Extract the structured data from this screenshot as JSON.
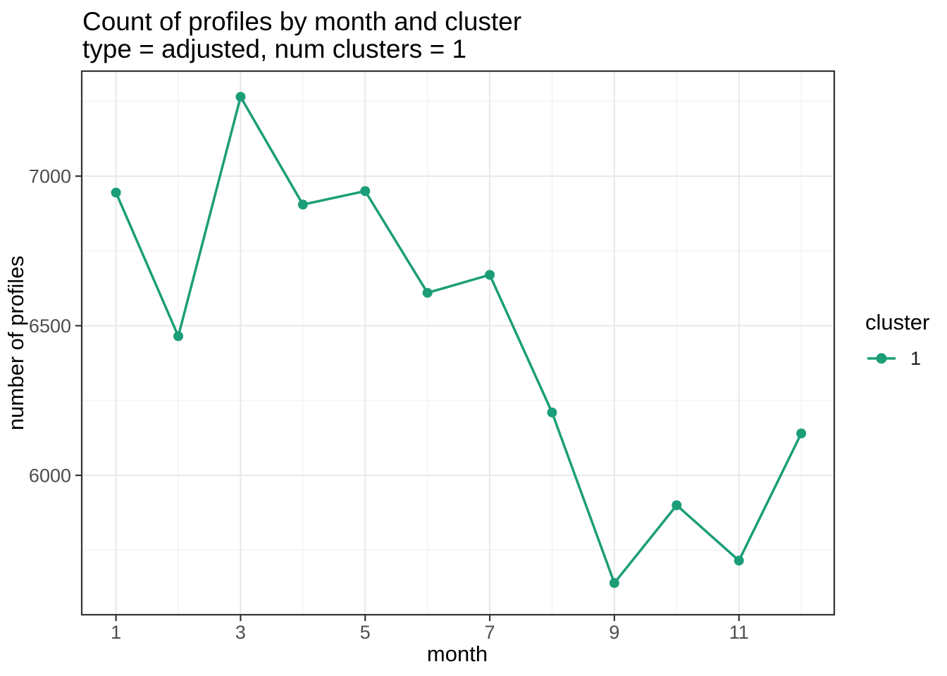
{
  "chart_data": {
    "type": "line",
    "title": "Count of profiles by month and cluster",
    "subtitle": "type = adjusted, num clusters = 1",
    "xlabel": "month",
    "ylabel": "number of profiles",
    "x": [
      1,
      2,
      3,
      4,
      5,
      6,
      7,
      8,
      9,
      10,
      11,
      12
    ],
    "series": [
      {
        "name": "1",
        "color": "#1B9E77",
        "values": [
          6945,
          6465,
          7265,
          6905,
          6950,
          6610,
          6670,
          6210,
          5640,
          5900,
          5715,
          6140
        ]
      }
    ],
    "legend": {
      "title": "cluster",
      "position": "right",
      "entries": [
        {
          "label": "1",
          "color": "#1B9E77"
        }
      ]
    },
    "axes": {
      "x_major_ticks": [
        1,
        3,
        5,
        7,
        9,
        11
      ],
      "x_minor_ticks": [
        2,
        4,
        6,
        8,
        10,
        12
      ],
      "y_major_ticks": [
        6000,
        6500,
        7000
      ],
      "y_minor_ticks": [
        5750,
        6250,
        6750,
        7250
      ],
      "xlim": [
        0.45,
        12.53
      ],
      "ylim": [
        5534,
        7351
      ]
    },
    "grid": true,
    "style": {
      "panel_background": "#ffffff",
      "panel_border": "#333333",
      "grid_major": "#e8e8e8",
      "grid_minor": "#f2f2f2",
      "tick_mark": "#333333",
      "tick_label_color": "#4d4d4d"
    }
  }
}
